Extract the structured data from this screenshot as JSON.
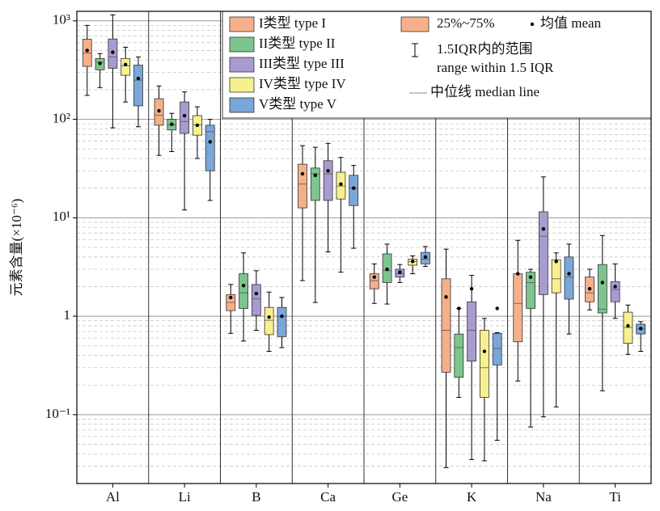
{
  "chart_data": {
    "type": "box",
    "ylabel": "元素含量(×10⁻⁶)",
    "log_y": true,
    "grid": true,
    "ylim": [
      0.02,
      1250
    ],
    "yticks": [
      {
        "value": 0.1,
        "label": "10⁻¹"
      },
      1,
      {
        "value": 10,
        "label": "10¹"
      },
      {
        "value": 100,
        "label": "10²"
      },
      {
        "value": 1000,
        "label": "10³"
      }
    ],
    "categories": [
      "Al",
      "Li",
      "B",
      "Ca",
      "Ge",
      "K",
      "Na",
      "Ti"
    ],
    "legend_position": "upper right",
    "legend_notes": {
      "box": "25%~75%",
      "mean": "均值 mean",
      "whisker": "1.5IQR内的范围",
      "whisker_en": "range within 1.5 IQR",
      "median": "中位线 median line"
    },
    "series": [
      {
        "name": "I类型  type I",
        "color": "#f5b08a",
        "low": [
          175,
          43,
          0.67,
          2.3,
          1.35,
          0.029,
          0.22,
          1.16
        ],
        "q1": [
          345,
          87,
          1.14,
          12.6,
          1.9,
          0.27,
          0.55,
          1.4
        ],
        "median": [
          470,
          110,
          1.38,
          22,
          2.3,
          0.72,
          1.35,
          1.73
        ],
        "q3": [
          650,
          162,
          1.66,
          35,
          2.7,
          2.4,
          2.7,
          2.5
        ],
        "high": [
          900,
          218,
          2.1,
          54,
          3.4,
          4.8,
          5.9,
          3.0
        ],
        "mean": [
          500,
          122,
          1.55,
          28,
          2.5,
          1.57,
          2.7,
          1.9
        ]
      },
      {
        "name": "II类型  type II",
        "color": "#7dc48f",
        "low": [
          210,
          47,
          0.56,
          1.38,
          1.33,
          0.15,
          0.075,
          0.175
        ],
        "q1": [
          318,
          78,
          1.2,
          15,
          2.2,
          0.24,
          1.2,
          1.08
        ],
        "median": [
          380,
          88,
          1.73,
          28,
          2.9,
          0.48,
          2.2,
          1.18
        ],
        "q3": [
          415,
          100,
          2.7,
          32,
          4.3,
          0.66,
          2.8,
          3.35
        ],
        "high": [
          465,
          115,
          4.4,
          52,
          5.4,
          1.2,
          3.0,
          6.6
        ],
        "mean": [
          370,
          89,
          2.05,
          27,
          3.0,
          1.2,
          2.5,
          2.2
        ]
      },
      {
        "name": "III类型  type III",
        "color": "#a99ad0",
        "low": [
          82,
          12,
          0.72,
          4.5,
          2.2,
          0.035,
          0.095,
          0.95
        ],
        "q1": [
          330,
          72,
          1.02,
          15,
          2.5,
          0.35,
          1.66,
          1.4
        ],
        "median": [
          430,
          95,
          1.5,
          28,
          2.7,
          0.72,
          6.5,
          1.87
        ],
        "q3": [
          655,
          150,
          2.1,
          38,
          3.0,
          1.4,
          11.5,
          2.25
        ],
        "high": [
          1150,
          190,
          2.9,
          57,
          3.35,
          2.6,
          26,
          3.4
        ],
        "mean": [
          480,
          109,
          1.7,
          30,
          2.8,
          1.9,
          7.7,
          2.0
        ]
      },
      {
        "name": "IV类型  type IV",
        "color": "#f7f08f",
        "low": [
          150,
          40,
          0.44,
          2.8,
          2.7,
          0.034,
          0.12,
          0.41
        ],
        "q1": [
          280,
          69,
          0.65,
          15.5,
          3.3,
          0.15,
          1.73,
          0.53
        ],
        "median": [
          350,
          88,
          0.91,
          21,
          3.6,
          0.3,
          2.4,
          0.77
        ],
        "q3": [
          415,
          109,
          1.23,
          29,
          3.8,
          0.72,
          3.75,
          1.1
        ],
        "high": [
          540,
          134,
          1.76,
          41,
          4.1,
          0.95,
          4.4,
          1.3
        ],
        "mean": [
          360,
          87,
          0.98,
          22,
          3.6,
          0.44,
          3.6,
          0.8
        ]
      },
      {
        "name": "V类型  type V",
        "color": "#7aa6d8",
        "low": [
          84,
          15,
          0.48,
          4.9,
          3.2,
          0.055,
          0.66,
          0.44
        ],
        "q1": [
          137,
          30,
          0.62,
          13.3,
          3.4,
          0.32,
          1.49,
          0.66
        ],
        "median": [
          250,
          75,
          1.0,
          20,
          3.8,
          0.47,
          2.5,
          0.74
        ],
        "q3": [
          355,
          87,
          1.23,
          27,
          4.45,
          0.67,
          4.0,
          0.83
        ],
        "high": [
          430,
          100,
          1.55,
          34,
          5.1,
          0.68,
          5.4,
          0.88
        ],
        "mean": [
          260,
          59,
          1.0,
          20,
          4.0,
          1.2,
          2.7,
          0.75
        ]
      }
    ]
  }
}
